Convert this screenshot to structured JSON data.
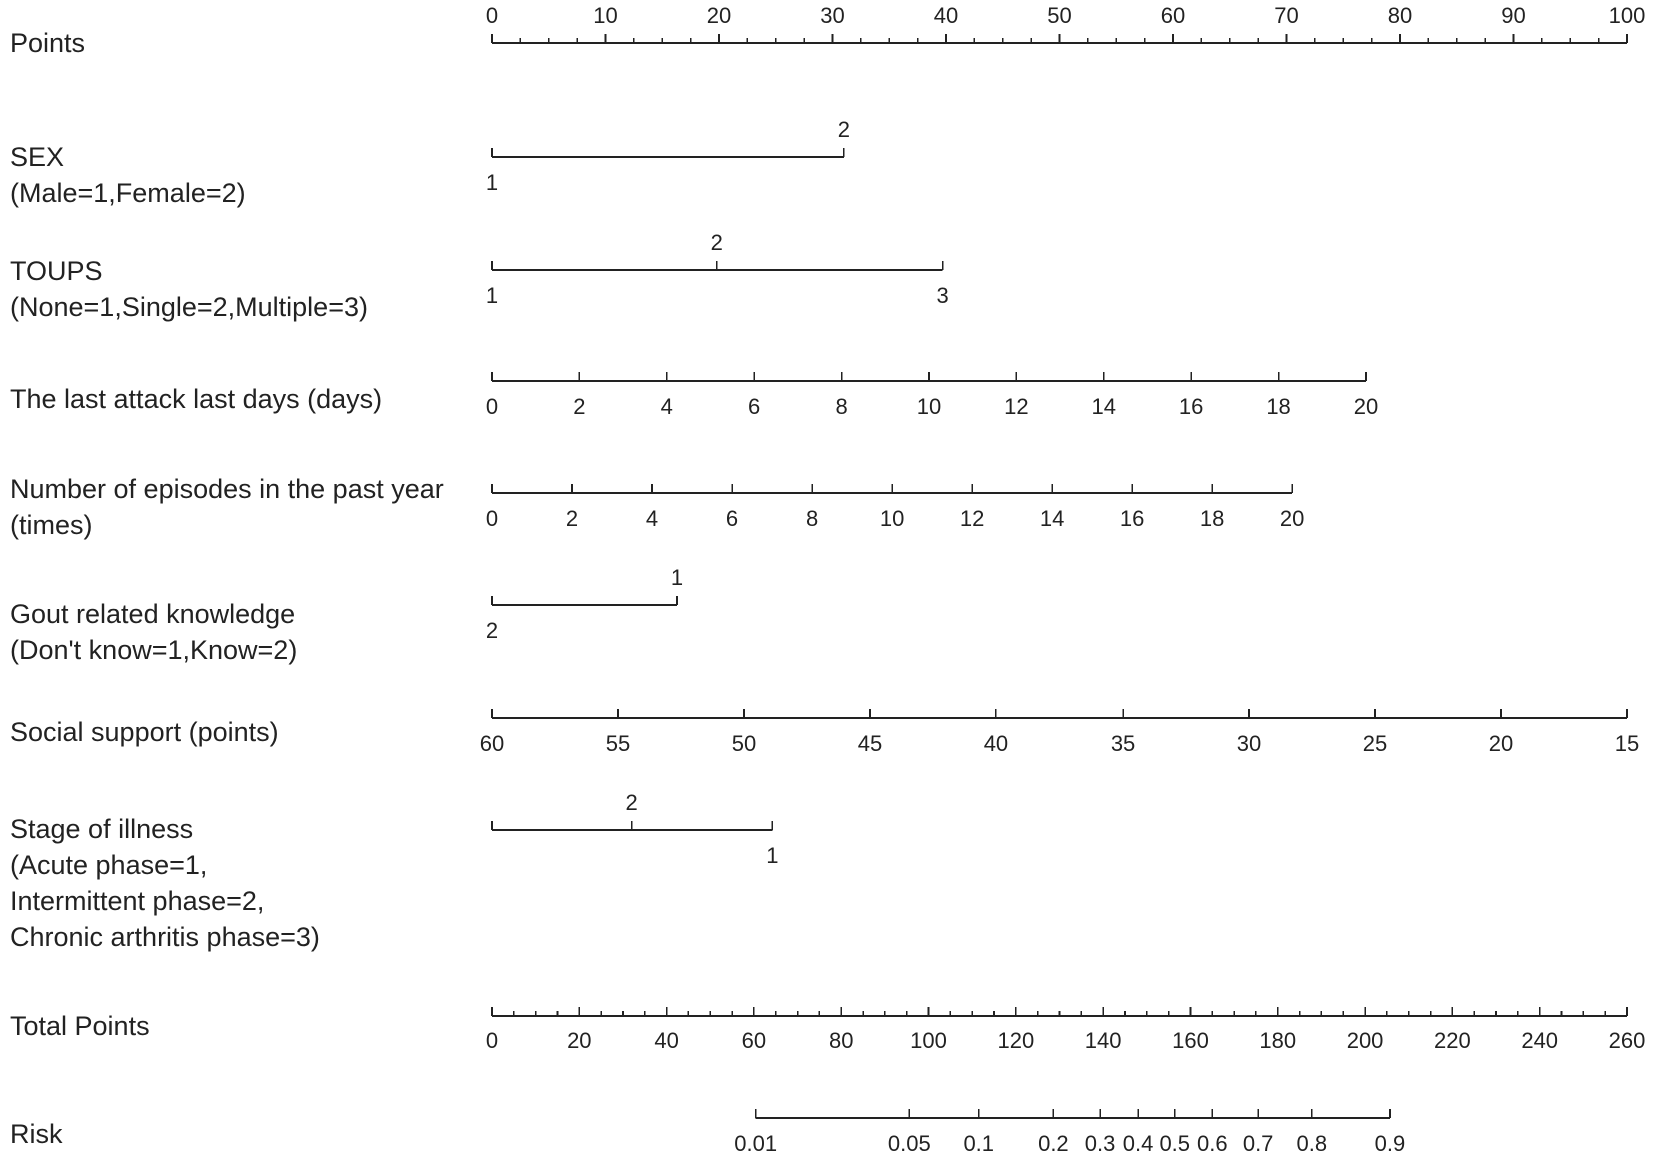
{
  "chart_data": {
    "type": "nomogram",
    "rows": [
      {
        "name": "Points",
        "label_lines": [
          "Points"
        ],
        "kind": "scale",
        "range": [
          0,
          100
        ],
        "tick_labels": [
          "0",
          "10",
          "20",
          "30",
          "40",
          "50",
          "60",
          "70",
          "80",
          "90",
          "100"
        ],
        "minor_step": 2.5,
        "labels_above": true
      },
      {
        "name": "SEX",
        "label_lines": [
          "SEX",
          "(Male=1,Female=2)"
        ],
        "kind": "categorical",
        "points": [
          {
            "label": "1",
            "value": 0,
            "pos": "below"
          },
          {
            "label": "2",
            "value": 31,
            "pos": "above"
          }
        ]
      },
      {
        "name": "TOUPS",
        "label_lines": [
          "TOUPS",
          "(None=1,Single=2,Multiple=3)"
        ],
        "kind": "categorical",
        "points": [
          {
            "label": "1",
            "value": 0,
            "pos": "below"
          },
          {
            "label": "2",
            "value": 19.8,
            "pos": "above"
          },
          {
            "label": "3",
            "value": 39.7,
            "pos": "below"
          }
        ]
      },
      {
        "name": "The last attack last days",
        "label_lines": [
          "The last attack last days (days)"
        ],
        "kind": "continuous",
        "ticks": [
          {
            "label": "0",
            "value": 0
          },
          {
            "label": "2",
            "value": 7.7
          },
          {
            "label": "4",
            "value": 15.4
          },
          {
            "label": "6",
            "value": 23.1
          },
          {
            "label": "8",
            "value": 30.8
          },
          {
            "label": "10",
            "value": 38.5
          },
          {
            "label": "12",
            "value": 46.2
          },
          {
            "label": "14",
            "value": 53.9
          },
          {
            "label": "16",
            "value": 61.6
          },
          {
            "label": "18",
            "value": 69.3
          },
          {
            "label": "20",
            "value": 77
          }
        ]
      },
      {
        "name": "Number of episodes in the past year",
        "label_lines": [
          "Number of episodes in the past year",
          "(times)"
        ],
        "kind": "continuous",
        "ticks": [
          {
            "label": "0",
            "value": 0
          },
          {
            "label": "2",
            "value": 7.05
          },
          {
            "label": "4",
            "value": 14.1
          },
          {
            "label": "6",
            "value": 21.15
          },
          {
            "label": "8",
            "value": 28.2
          },
          {
            "label": "10",
            "value": 35.25
          },
          {
            "label": "12",
            "value": 42.3
          },
          {
            "label": "14",
            "value": 49.35
          },
          {
            "label": "16",
            "value": 56.4
          },
          {
            "label": "18",
            "value": 63.45
          },
          {
            "label": "20",
            "value": 70.5
          }
        ]
      },
      {
        "name": "Gout related knowledge",
        "label_lines": [
          "Gout related knowledge",
          "(Don't know=1,Know=2)"
        ],
        "kind": "categorical",
        "points": [
          {
            "label": "2",
            "value": 0,
            "pos": "below"
          },
          {
            "label": "1",
            "value": 16.3,
            "pos": "above"
          }
        ]
      },
      {
        "name": "Social support",
        "label_lines": [
          "Social support (points)"
        ],
        "kind": "continuous",
        "ticks": [
          {
            "label": "60",
            "value": 0
          },
          {
            "label": "55",
            "value": 11.1
          },
          {
            "label": "50",
            "value": 22.2
          },
          {
            "label": "45",
            "value": 33.3
          },
          {
            "label": "40",
            "value": 44.4
          },
          {
            "label": "35",
            "value": 55.6
          },
          {
            "label": "30",
            "value": 66.7
          },
          {
            "label": "25",
            "value": 77.8
          },
          {
            "label": "20",
            "value": 88.9
          },
          {
            "label": "15",
            "value": 100
          }
        ]
      },
      {
        "name": "Stage of illness",
        "label_lines": [
          "Stage of illness",
          "(Acute phase=1,",
          "Intermittent phase=2,",
          "Chronic arthritis phase=3)"
        ],
        "kind": "categorical",
        "points": [
          {
            "label": "",
            "value": 0,
            "pos": "below"
          },
          {
            "label": "2",
            "value": 12.3,
            "pos": "above"
          },
          {
            "label": "1",
            "value": 24.7,
            "pos": "below"
          }
        ]
      },
      {
        "name": "Total Points",
        "label_lines": [
          "Total Points"
        ],
        "kind": "scale",
        "range": [
          0,
          260
        ],
        "tick_labels": [
          "0",
          "20",
          "40",
          "60",
          "80",
          "100",
          "120",
          "140",
          "160",
          "180",
          "200",
          "220",
          "240",
          "260"
        ],
        "minor_step": 5,
        "labels_above": false
      },
      {
        "name": "Risk",
        "label_lines": [
          "Risk"
        ],
        "kind": "risk",
        "ticks": [
          {
            "label": "0.01",
            "total": 60.4
          },
          {
            "label": "0.05",
            "total": 95.6
          },
          {
            "label": "0.1",
            "total": 111.5
          },
          {
            "label": "0.2",
            "total": 128.6
          },
          {
            "label": "0.3",
            "total": 139.3
          },
          {
            "label": "0.4",
            "total": 148.0
          },
          {
            "label": "0.5",
            "total": 156.4
          },
          {
            "label": "0.6",
            "total": 165.0
          },
          {
            "label": "0.7",
            "total": 175.5
          },
          {
            "label": "0.8",
            "total": 187.8
          },
          {
            "label": "0.9",
            "total": 205.7
          }
        ]
      }
    ]
  }
}
